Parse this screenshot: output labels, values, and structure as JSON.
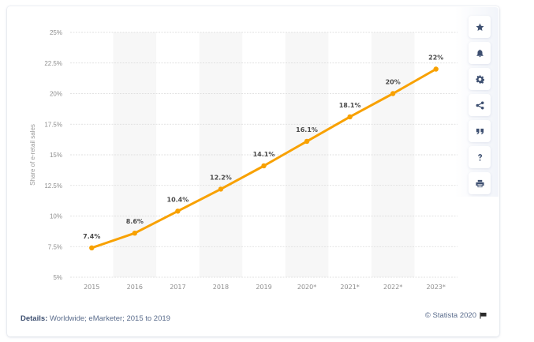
{
  "chart_data": {
    "type": "line",
    "title": "",
    "xlabel": "",
    "ylabel": "Share of e-retail sales",
    "categories": [
      "2015",
      "2016",
      "2017",
      "2018",
      "2019",
      "2020*",
      "2021*",
      "2022*",
      "2023*"
    ],
    "series": [
      {
        "name": "Share of e-retail sales",
        "values": [
          7.4,
          8.6,
          10.4,
          12.2,
          14.1,
          16.1,
          18.1,
          20,
          22
        ],
        "labels": [
          "7.4%",
          "8.6%",
          "10.4%",
          "12.2%",
          "14.1%",
          "16.1%",
          "18.1%",
          "20%",
          "22%"
        ],
        "color": "#f8a100"
      }
    ],
    "ylim": [
      5,
      25
    ],
    "yticks": [
      5,
      7.5,
      10,
      12.5,
      15,
      17.5,
      20,
      22.5,
      25
    ],
    "ytick_labels": [
      "5%",
      "7.5%",
      "10%",
      "12.5%",
      "15%",
      "17.5%",
      "20%",
      "22.5%",
      "25%"
    ],
    "grid": true,
    "shaded_categories": [
      "2016",
      "2018",
      "2020*",
      "2022*"
    ]
  },
  "toolbar": {
    "buttons": [
      {
        "name": "favorite",
        "icon": "star-icon"
      },
      {
        "name": "notification",
        "icon": "bell-icon"
      },
      {
        "name": "settings",
        "icon": "gear-icon"
      },
      {
        "name": "share",
        "icon": "share-icon"
      },
      {
        "name": "cite",
        "icon": "quote-icon"
      },
      {
        "name": "help",
        "icon": "question-icon"
      },
      {
        "name": "print",
        "icon": "print-icon"
      }
    ]
  },
  "footer": {
    "details_label": "Details:",
    "details_text": " Worldwide; eMarketer; 2015 to 2019",
    "copyright": "© Statista 2020",
    "flag_icon": "flag-icon"
  },
  "colors": {
    "line": "#f8a100",
    "icon": "#3d4f70",
    "band": "#f7f7f7"
  }
}
